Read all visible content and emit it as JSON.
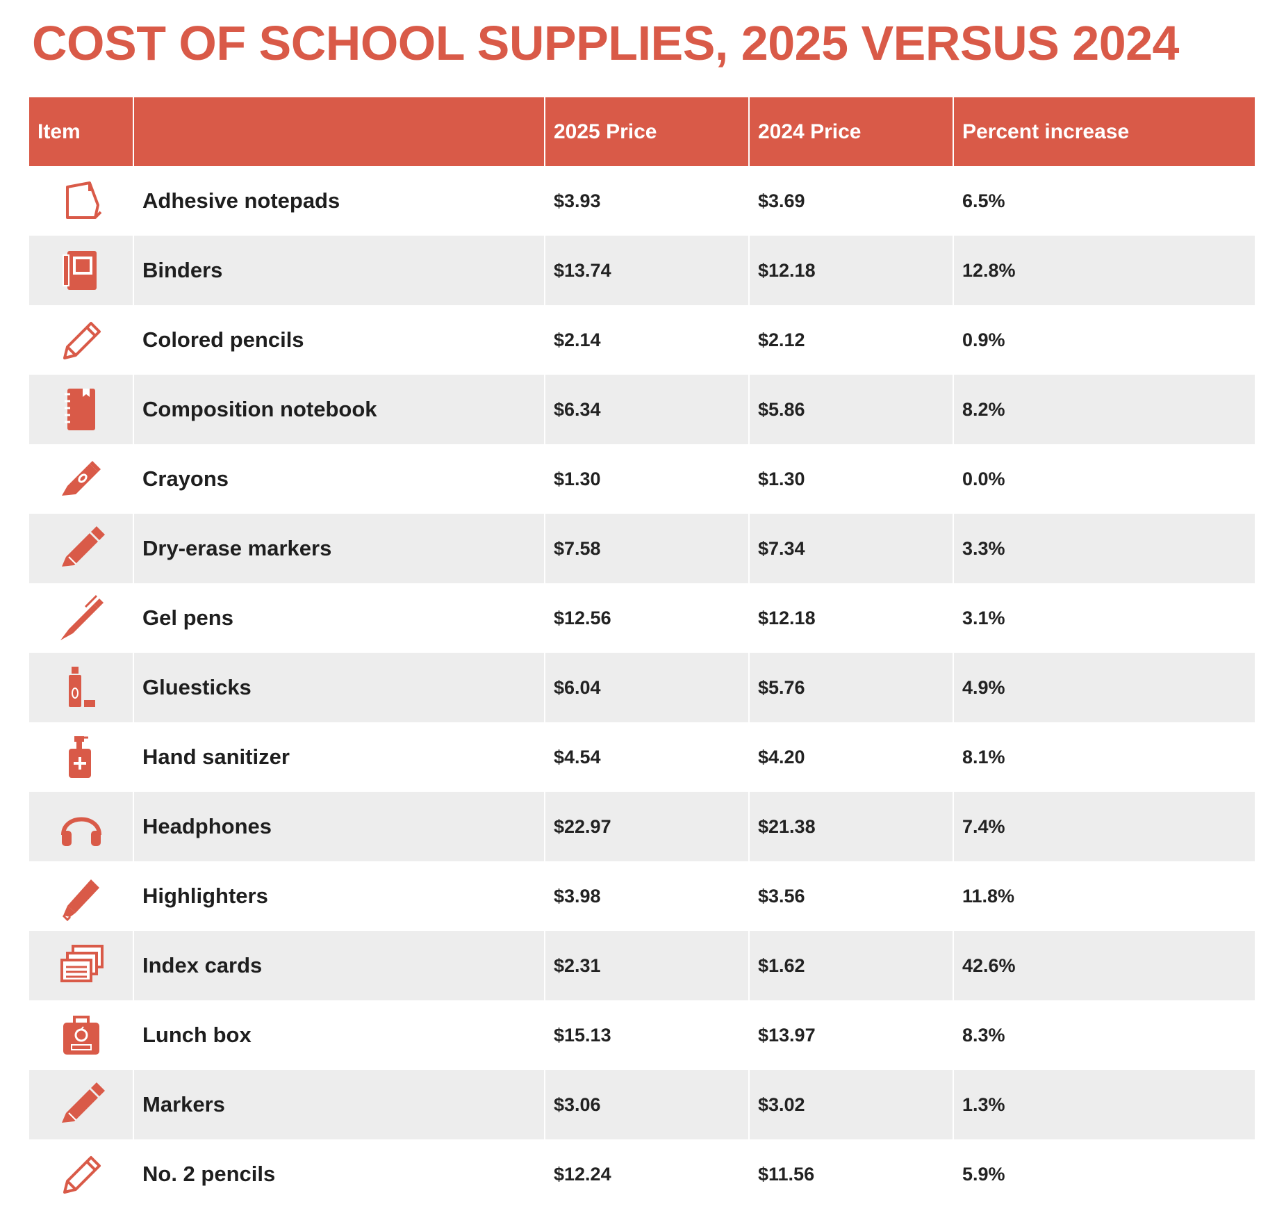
{
  "title": "COST OF SCHOOL SUPPLIES, 2025 VERSUS 2024",
  "colors": {
    "accent": "#d95a48",
    "stripe": "#ededed"
  },
  "chart_data": {
    "type": "table",
    "title": "COST OF SCHOOL SUPPLIES, 2025 VERSUS 2024",
    "columns": [
      "Item",
      "",
      "2025 Price",
      "2024 Price",
      "Percent increase"
    ],
    "rows": [
      {
        "icon": "notepad-icon",
        "item": "Adhesive notepads",
        "price_2025": "$3.93",
        "price_2024": "$3.69",
        "pct": "6.5%"
      },
      {
        "icon": "binder-icon",
        "item": "Binders",
        "price_2025": "$13.74",
        "price_2024": "$12.18",
        "pct": "12.8%"
      },
      {
        "icon": "pencil-outline-icon",
        "item": "Colored pencils",
        "price_2025": "$2.14",
        "price_2024": "$2.12",
        "pct": "0.9%"
      },
      {
        "icon": "notebook-icon",
        "item": "Composition notebook",
        "price_2025": "$6.34",
        "price_2024": "$5.86",
        "pct": "8.2%"
      },
      {
        "icon": "crayon-icon",
        "item": "Crayons",
        "price_2025": "$1.30",
        "price_2024": "$1.30",
        "pct": "0.0%"
      },
      {
        "icon": "marker-icon",
        "item": "Dry-erase markers",
        "price_2025": "$7.58",
        "price_2024": "$7.34",
        "pct": "3.3%"
      },
      {
        "icon": "pen-icon",
        "item": "Gel pens",
        "price_2025": "$12.56",
        "price_2024": "$12.18",
        "pct": "3.1%"
      },
      {
        "icon": "gluestick-icon",
        "item": "Gluesticks",
        "price_2025": "$6.04",
        "price_2024": "$5.76",
        "pct": "4.9%"
      },
      {
        "icon": "sanitizer-icon",
        "item": "Hand sanitizer",
        "price_2025": "$4.54",
        "price_2024": "$4.20",
        "pct": "8.1%"
      },
      {
        "icon": "headphones-icon",
        "item": "Headphones",
        "price_2025": "$22.97",
        "price_2024": "$21.38",
        "pct": "7.4%"
      },
      {
        "icon": "highlighter-icon",
        "item": "Highlighters",
        "price_2025": "$3.98",
        "price_2024": "$3.56",
        "pct": "11.8%"
      },
      {
        "icon": "index-cards-icon",
        "item": "Index cards",
        "price_2025": "$2.31",
        "price_2024": "$1.62",
        "pct": "42.6%"
      },
      {
        "icon": "lunchbox-icon",
        "item": "Lunch box",
        "price_2025": "$15.13",
        "price_2024": "$13.97",
        "pct": "8.3%"
      },
      {
        "icon": "marker-icon",
        "item": "Markers",
        "price_2025": "$3.06",
        "price_2024": "$3.02",
        "pct": "1.3%"
      },
      {
        "icon": "pencil-outline-icon",
        "item": "No. 2 pencils",
        "price_2025": "$12.24",
        "price_2024": "$11.56",
        "pct": "5.9%"
      }
    ]
  }
}
